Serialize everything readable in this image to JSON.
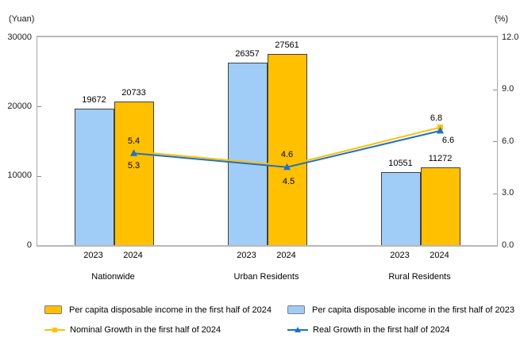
{
  "axes": {
    "left_unit": "(Yuan)",
    "right_unit": "(%)",
    "left_ticks": [
      "30000",
      "20000",
      "10000",
      "0"
    ],
    "right_ticks": [
      "12.0",
      "9.0",
      "6.0",
      "3.0",
      "0.0"
    ]
  },
  "chart_data": {
    "type": "bar+line",
    "categories": [
      "Nationwide",
      "Urban Residents",
      "Rural Residents"
    ],
    "bar_year_labels": [
      "2023",
      "2024"
    ],
    "ylim_left": [
      0,
      30000
    ],
    "ylim_right": [
      0,
      12
    ],
    "left_axis_label": "(Yuan)",
    "right_axis_label": "(%)",
    "grid": "off",
    "legend_position": "bottom",
    "series": [
      {
        "name": "Per capita disposable income in the first half of 2023",
        "type": "bar",
        "axis": "left",
        "color": "#A0CDF8",
        "values": [
          19672,
          26357,
          10551
        ]
      },
      {
        "name": "Per capita disposable income in the first half of 2024",
        "type": "bar",
        "axis": "left",
        "color": "#FFC000",
        "values": [
          20733,
          27561,
          11272
        ]
      },
      {
        "name": "Nominal Growth in the first half of 2024",
        "type": "line",
        "axis": "right",
        "color": "#FFC000",
        "marker": "square",
        "values": [
          5.4,
          4.6,
          6.8
        ]
      },
      {
        "name": "Real Growth in the first half of 2024",
        "type": "line",
        "axis": "right",
        "color": "#2070C8",
        "marker": "triangle",
        "values": [
          5.3,
          4.5,
          6.6
        ]
      }
    ]
  },
  "colors": {
    "bar_2023": "#A0CDF8",
    "bar_2024": "#FFC000",
    "nominal_line": "#FFC000",
    "real_line": "#2070C8",
    "bar_border": "#404040",
    "frame": "#a8a8a8"
  },
  "legend": {
    "columns": [
      {
        "items": [
          {
            "label": "Per capita disposable income in the first half of 2024",
            "swatch": "bar",
            "color": "#FFC000"
          },
          {
            "label": "Nominal Growth in the first half of 2024",
            "swatch": "line-square",
            "color": "#FFC000"
          }
        ]
      },
      {
        "items": [
          {
            "label": "Per capita disposable income in the first half of 2023",
            "swatch": "bar",
            "color": "#A0CDF8"
          },
          {
            "label": "Real Growth in the first half of 2024",
            "swatch": "line-triangle",
            "color": "#2070C8"
          }
        ]
      }
    ]
  }
}
